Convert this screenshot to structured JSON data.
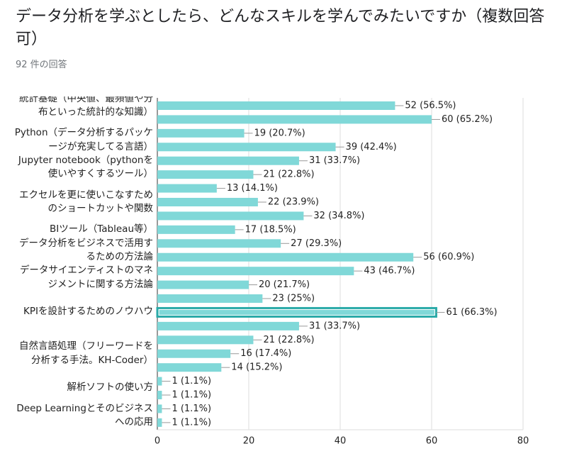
{
  "header": {
    "title": "データ分析を学ぶとしたら、どんなスキルを学んでみたいですか（複数回答可）",
    "subtitle": "92 件の回答"
  },
  "chart_data": {
    "type": "bar",
    "orientation": "horizontal",
    "color": "#80d8d8",
    "highlight_color": "#2aaaa8",
    "categories": [
      "統計基礎（中央値、最頻値や分布といった統計的な知識）",
      null,
      "Python（データ分析するパッケージが充実してる言語）",
      null,
      "Jupyter notebook（pythonを使いやすくするツール）",
      null,
      "エクセルを更に使いこなすためのショートカットや関数",
      null,
      null,
      "BIツール（Tableau等）",
      "データ分析をビジネスで活用するための方法論",
      null,
      "データサイエンティストのマネジメントに関する方法論",
      null,
      "KPIを設計するためのノウハウ",
      null,
      null,
      "自然言語処理（フリーワードを分析する手法。KH-Coder）",
      null,
      null,
      "解析ソフトの使い方",
      null,
      "Deep Learningとそのビジネスへの応用",
      null
    ],
    "values": [
      52,
      60,
      19,
      39,
      31,
      21,
      13,
      22,
      32,
      17,
      27,
      56,
      43,
      20,
      23,
      61,
      31,
      21,
      16,
      14,
      1,
      1,
      1,
      1
    ],
    "value_labels": [
      "52 (56.5%)",
      "60 (65.2%)",
      "19 (20.7%)",
      "39 (42.4%)",
      "31 (33.7%)",
      "21 (22.8%)",
      "13 (14.1%)",
      "22 (23.9%)",
      "32 (34.8%)",
      "17 (18.5%)",
      "27 (29.3%)",
      "56 (60.9%)",
      "43 (46.7%)",
      "20 (21.7%)",
      "23 (25%)",
      "61 (66.3%)",
      "31 (33.7%)",
      "21 (22.8%)",
      "16 (17.4%)",
      "14 (15.2%)",
      "1 (1.1%)",
      "1 (1.1%)",
      "1 (1.1%)",
      "1 (1.1%)"
    ],
    "highlighted": 15,
    "xlim": [
      0,
      80
    ],
    "xticks": [
      0,
      20,
      40,
      60,
      80
    ],
    "grid": true
  }
}
